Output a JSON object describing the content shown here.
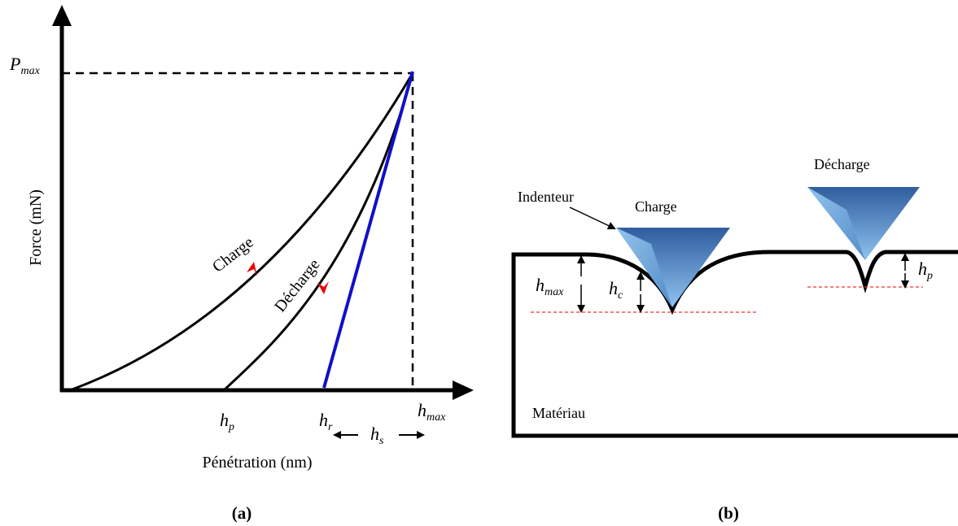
{
  "panel_a": {
    "y_axis_label": "Force (mN)",
    "x_axis_label": "Pénétration (nm)",
    "p_max": {
      "base": "P",
      "sub": "max"
    },
    "curve_labels": {
      "loading": "Charge",
      "unloading": "Décharge"
    },
    "x_marks": {
      "h_p": {
        "base": "h",
        "sub": "p"
      },
      "h_r": {
        "base": "h",
        "sub": "r"
      },
      "h_max": {
        "base": "h",
        "sub": "max"
      },
      "h_s": {
        "base": "h",
        "sub": "s"
      }
    },
    "caption": "(a)"
  },
  "panel_b": {
    "indenter_label": "Indenteur",
    "loading_label": "Charge",
    "unloading_label": "Décharge",
    "material_label": "Matériau",
    "h_max": {
      "base": "h",
      "sub": "max"
    },
    "h_c": {
      "base": "h",
      "sub": "c"
    },
    "h_p": {
      "base": "h",
      "sub": "p"
    },
    "caption": "(b)"
  }
}
